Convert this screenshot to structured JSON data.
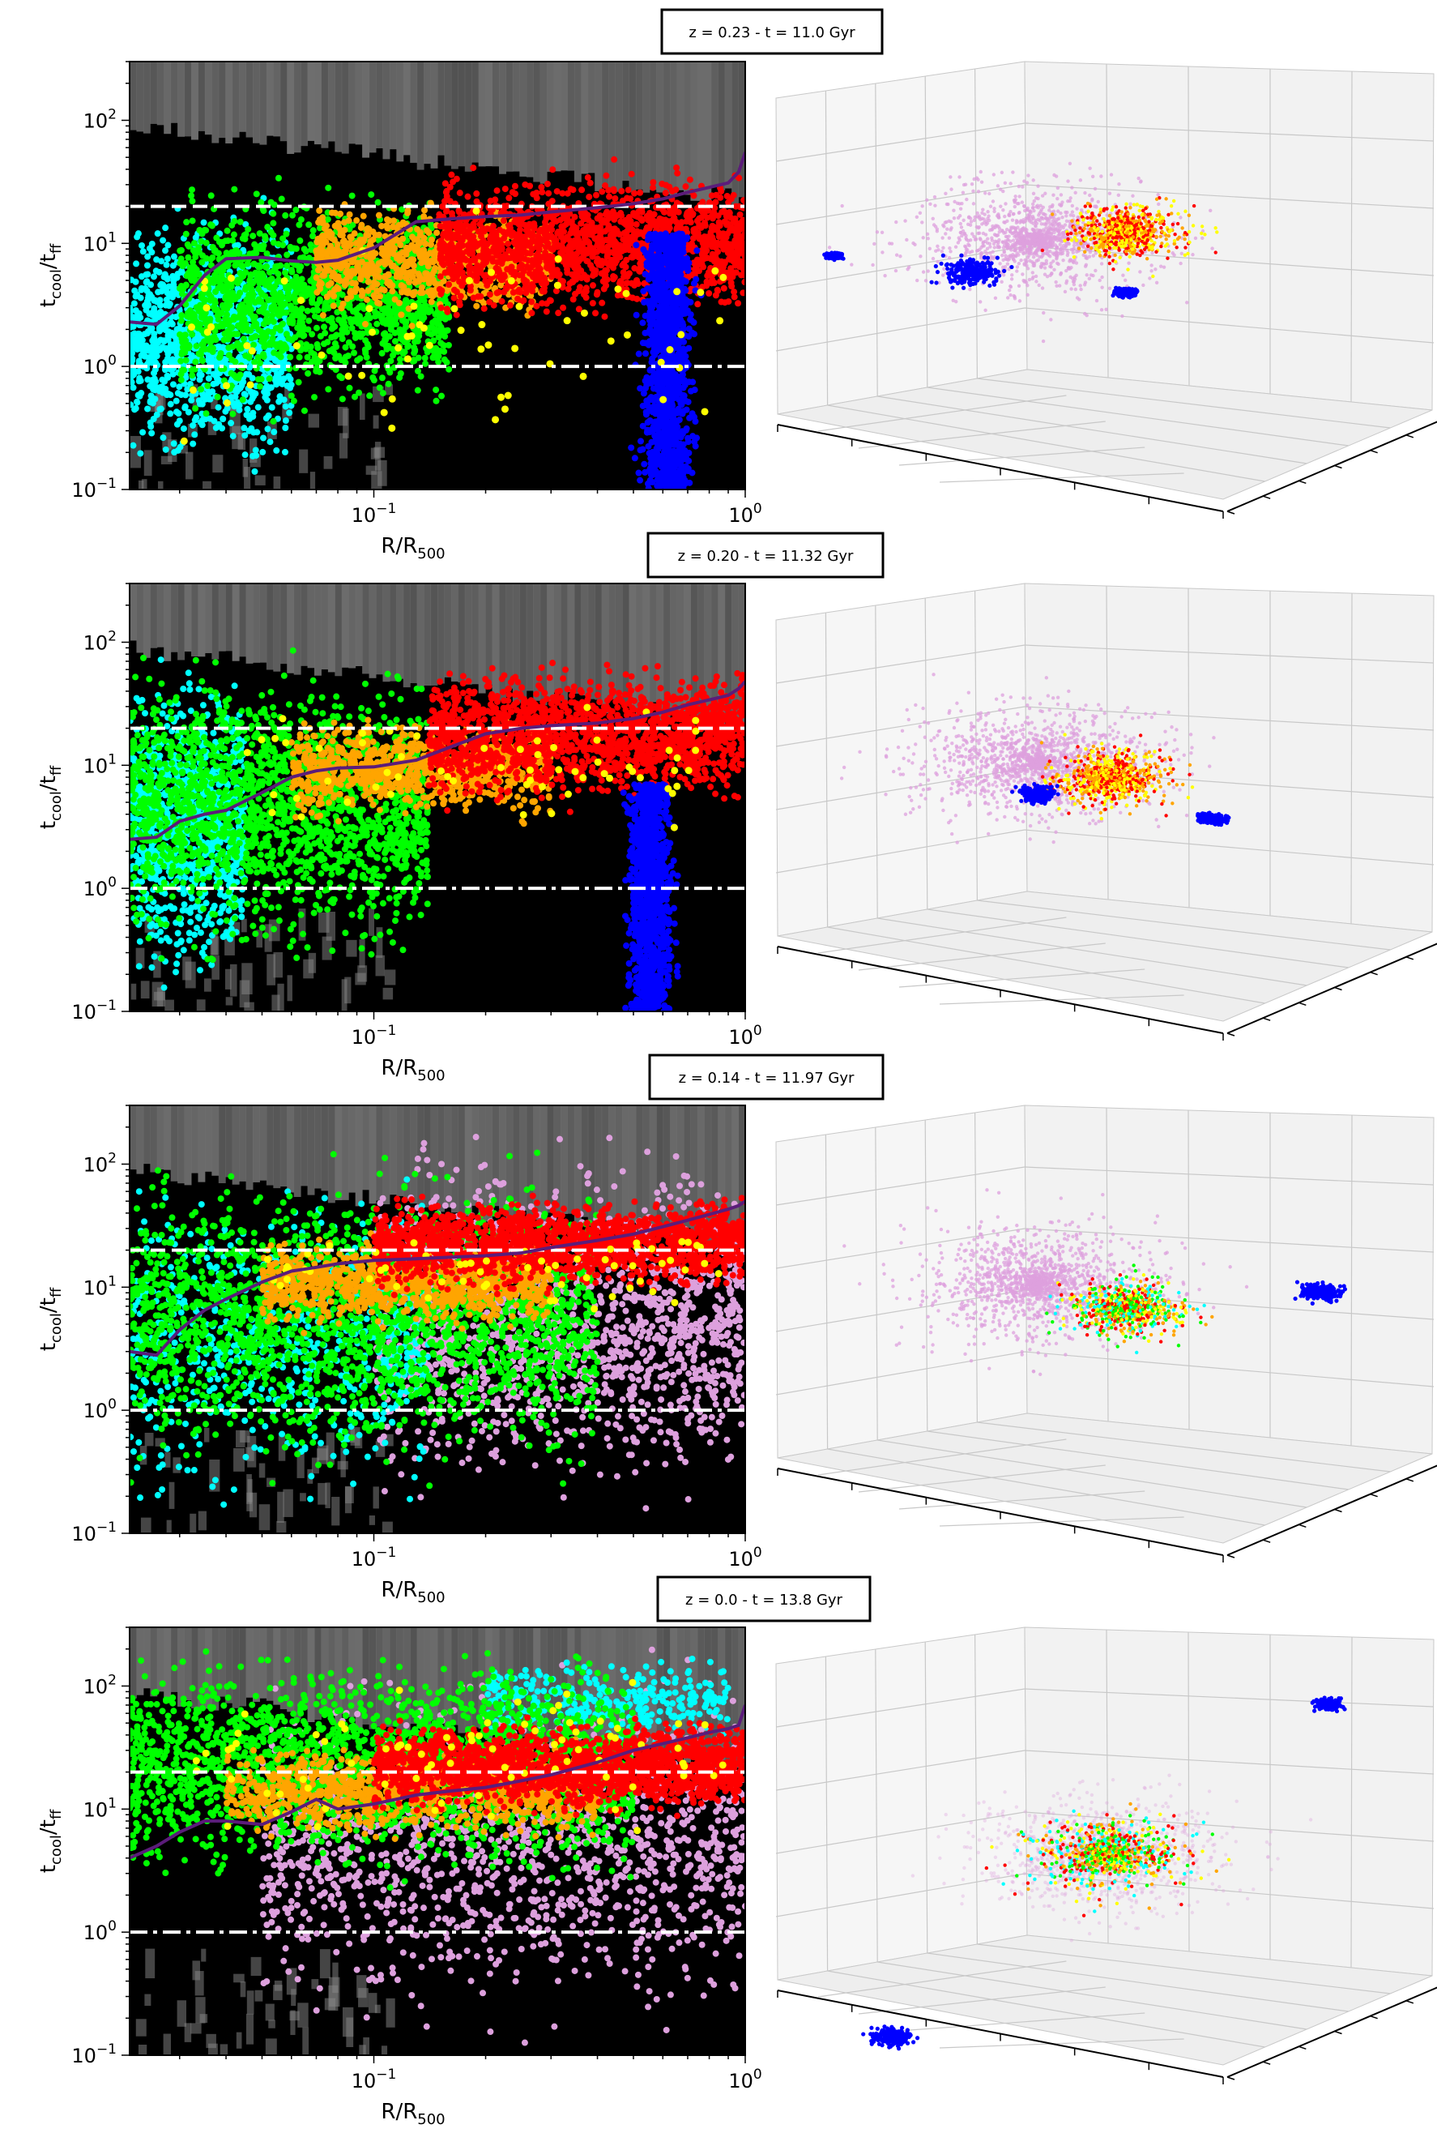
{
  "figure": {
    "panels": [
      {
        "title": "z = 0.23 - t = 11.0 Gyr"
      },
      {
        "title": "z = 0.20 - t = 11.32 Gyr"
      },
      {
        "title": "z = 0.14 - t = 11.97 Gyr"
      },
      {
        "title": "z = 0.0 - t = 13.8 Gyr"
      }
    ],
    "colors": {
      "background_black": "#000000",
      "histogram_grey": "#6e6e6e",
      "cyan": "#00ffff",
      "green": "#00ff00",
      "orange": "#ffa500",
      "red": "#ff0000",
      "blue": "#0000ff",
      "yellow": "#ffff00",
      "pink": "#dda0dd",
      "profile_line": "#5b1c7a",
      "threshold_line": "#ffffff"
    }
  },
  "chart_data": [
    {
      "type": "scatter",
      "title": "z = 0.23 - t = 11.0 Gyr",
      "xlabel": "R/R500",
      "ylabel": "tcool/tff",
      "xscale": "log",
      "yscale": "log",
      "xlim": [
        0.022,
        1.0
      ],
      "ylim": [
        0.1,
        300
      ],
      "x_ticks": [
        {
          "value": 0.1,
          "base": "10",
          "exp": "−1"
        },
        {
          "value": 1.0,
          "base": "10",
          "exp": "0"
        }
      ],
      "y_ticks": [
        {
          "value": 0.1,
          "base": "10",
          "exp": "−1"
        },
        {
          "value": 1,
          "base": "10",
          "exp": "0"
        },
        {
          "value": 10,
          "base": "10",
          "exp": "1"
        },
        {
          "value": 100,
          "base": "10",
          "exp": "2"
        }
      ],
      "hlines": [
        {
          "y": 20,
          "style": "dashed",
          "color": "#ffffff"
        },
        {
          "y": 1,
          "style": "dashdot",
          "color": "#ffffff"
        }
      ],
      "profile": {
        "color": "#5b1c7a",
        "x": [
          0.022,
          0.026,
          0.03,
          0.035,
          0.04,
          0.05,
          0.06,
          0.07,
          0.08,
          0.1,
          0.13,
          0.16,
          0.2,
          0.25,
          0.3,
          0.4,
          0.5,
          0.6,
          0.7,
          0.8,
          0.9,
          0.96,
          1.0
        ],
        "y": [
          2.3,
          2.2,
          3.1,
          5.5,
          7.5,
          7.7,
          7.2,
          7.0,
          7.3,
          9.2,
          15.0,
          15.8,
          16.5,
          17.0,
          18.0,
          19.5,
          21.0,
          23.0,
          26.0,
          28.5,
          31.0,
          38.0,
          55.0
        ]
      },
      "layers": [
        {
          "name": "cyan",
          "color": "#00ffff",
          "x_range": [
            0.022,
            0.06
          ],
          "y_range": [
            0.1,
            30
          ],
          "count": 1100
        },
        {
          "name": "green",
          "color": "#00ff00",
          "x_range": [
            0.03,
            0.16
          ],
          "y_range": [
            0.3,
            40
          ],
          "count": 1500
        },
        {
          "name": "orange",
          "color": "#ffa500",
          "x_range": [
            0.07,
            0.3
          ],
          "y_range": [
            2,
            25
          ],
          "count": 900
        },
        {
          "name": "red",
          "color": "#ff0000",
          "x_range": [
            0.15,
            1.0
          ],
          "y_range": [
            2,
            50
          ],
          "count": 1600
        },
        {
          "name": "blue",
          "color": "#0000ff",
          "x_range": [
            0.38,
            1.0
          ],
          "y_range": [
            0.1,
            12
          ],
          "count": 1300
        },
        {
          "name": "yellow",
          "color": "#ffff00",
          "x_range": [
            0.03,
            0.9
          ],
          "y_range": [
            0.1,
            30
          ],
          "count": 70
        }
      ]
    },
    {
      "type": "scatter",
      "title": "z = 0.20 - t = 11.32 Gyr",
      "xlabel": "R/R500",
      "ylabel": "tcool/tff",
      "xscale": "log",
      "yscale": "log",
      "xlim": [
        0.022,
        1.0
      ],
      "ylim": [
        0.1,
        300
      ],
      "x_ticks": [
        {
          "value": 0.1,
          "base": "10",
          "exp": "−1"
        },
        {
          "value": 1.0,
          "base": "10",
          "exp": "0"
        }
      ],
      "y_ticks": [
        {
          "value": 0.1,
          "base": "10",
          "exp": "−1"
        },
        {
          "value": 1,
          "base": "10",
          "exp": "0"
        },
        {
          "value": 10,
          "base": "10",
          "exp": "1"
        },
        {
          "value": 100,
          "base": "10",
          "exp": "2"
        }
      ],
      "hlines": [
        {
          "y": 20,
          "style": "dashed",
          "color": "#ffffff"
        },
        {
          "y": 1,
          "style": "dashdot",
          "color": "#ffffff"
        }
      ],
      "profile": {
        "color": "#5b1c7a",
        "x": [
          0.022,
          0.026,
          0.03,
          0.035,
          0.04,
          0.05,
          0.06,
          0.07,
          0.08,
          0.1,
          0.13,
          0.16,
          0.2,
          0.25,
          0.3,
          0.4,
          0.5,
          0.6,
          0.7,
          0.8,
          0.9,
          0.96,
          1.0
        ],
        "y": [
          2.5,
          2.6,
          3.5,
          4.0,
          4.3,
          6.0,
          8.0,
          9.0,
          9.5,
          9.7,
          11.0,
          14.0,
          18.0,
          20.0,
          21.0,
          22.0,
          24.0,
          27.0,
          31.0,
          34.0,
          37.0,
          42.0,
          48.0
        ]
      },
      "layers": [
        {
          "name": "cyan",
          "color": "#00ffff",
          "x_range": [
            0.022,
            0.045
          ],
          "y_range": [
            0.1,
            100
          ],
          "count": 900
        },
        {
          "name": "green",
          "color": "#00ff00",
          "x_range": [
            0.022,
            0.14
          ],
          "y_range": [
            0.2,
            100
          ],
          "count": 1800
        },
        {
          "name": "orange",
          "color": "#ffa500",
          "x_range": [
            0.06,
            0.3
          ],
          "y_range": [
            3,
            30
          ],
          "count": 900
        },
        {
          "name": "red",
          "color": "#ff0000",
          "x_range": [
            0.14,
            1.0
          ],
          "y_range": [
            4,
            80
          ],
          "count": 1700
        },
        {
          "name": "blue",
          "color": "#0000ff",
          "x_range": [
            0.36,
            0.85
          ],
          "y_range": [
            0.1,
            7
          ],
          "count": 1100
        },
        {
          "name": "yellow",
          "color": "#ffff00",
          "x_range": [
            0.04,
            0.9
          ],
          "y_range": [
            2,
            40
          ],
          "count": 60
        }
      ]
    },
    {
      "type": "scatter",
      "title": "z = 0.14 - t = 11.97 Gyr",
      "xlabel": "R/R500",
      "ylabel": "tcool/tff",
      "xscale": "log",
      "yscale": "log",
      "xlim": [
        0.022,
        1.0
      ],
      "ylim": [
        0.1,
        300
      ],
      "x_ticks": [
        {
          "value": 0.1,
          "base": "10",
          "exp": "−1"
        },
        {
          "value": 1.0,
          "base": "10",
          "exp": "0"
        }
      ],
      "y_ticks": [
        {
          "value": 0.1,
          "base": "10",
          "exp": "−1"
        },
        {
          "value": 1,
          "base": "10",
          "exp": "0"
        },
        {
          "value": 10,
          "base": "10",
          "exp": "1"
        },
        {
          "value": 100,
          "base": "10",
          "exp": "2"
        }
      ],
      "hlines": [
        {
          "y": 20,
          "style": "dashed",
          "color": "#ffffff"
        },
        {
          "y": 1,
          "style": "dashdot",
          "color": "#ffffff"
        }
      ],
      "profile": {
        "color": "#5b1c7a",
        "x": [
          0.022,
          0.026,
          0.03,
          0.035,
          0.04,
          0.05,
          0.06,
          0.07,
          0.08,
          0.1,
          0.13,
          0.16,
          0.2,
          0.25,
          0.3,
          0.4,
          0.5,
          0.6,
          0.7,
          0.8,
          0.9,
          0.96,
          1.0
        ],
        "y": [
          3.0,
          2.8,
          4.5,
          6.5,
          8.0,
          11.0,
          13.5,
          14.5,
          15.5,
          16.5,
          17.0,
          17.5,
          18.0,
          19.0,
          21.0,
          24.0,
          27.0,
          31.0,
          35.0,
          39.0,
          43.0,
          46.0,
          50.0
        ]
      },
      "layers": [
        {
          "name": "pink",
          "color": "#dda0dd",
          "x_range": [
            0.1,
            1.0
          ],
          "y_range": [
            0.1,
            250
          ],
          "count": 1600
        },
        {
          "name": "cyan",
          "color": "#00ffff",
          "x_range": [
            0.022,
            0.14
          ],
          "y_range": [
            0.1,
            150
          ],
          "count": 700
        },
        {
          "name": "green",
          "color": "#00ff00",
          "x_range": [
            0.022,
            0.4
          ],
          "y_range": [
            0.2,
            150
          ],
          "count": 2000
        },
        {
          "name": "orange",
          "color": "#ffa500",
          "x_range": [
            0.05,
            0.3
          ],
          "y_range": [
            4,
            30
          ],
          "count": 900
        },
        {
          "name": "red",
          "color": "#ff0000",
          "x_range": [
            0.1,
            1.0
          ],
          "y_range": [
            8,
            60
          ],
          "count": 1700
        },
        {
          "name": "yellow",
          "color": "#ffff00",
          "x_range": [
            0.05,
            0.9
          ],
          "y_range": [
            5,
            40
          ],
          "count": 60
        }
      ]
    },
    {
      "type": "scatter",
      "title": "z = 0.0 - t = 13.8 Gyr",
      "xlabel": "R/R500",
      "ylabel": "tcool/tff",
      "xscale": "log",
      "yscale": "log",
      "xlim": [
        0.022,
        1.0
      ],
      "ylim": [
        0.1,
        300
      ],
      "x_ticks": [
        {
          "value": 0.1,
          "base": "10",
          "exp": "−1"
        },
        {
          "value": 1.0,
          "base": "10",
          "exp": "0"
        }
      ],
      "y_ticks": [
        {
          "value": 0.1,
          "base": "10",
          "exp": "−1"
        },
        {
          "value": 1,
          "base": "10",
          "exp": "0"
        },
        {
          "value": 10,
          "base": "10",
          "exp": "1"
        },
        {
          "value": 100,
          "base": "10",
          "exp": "2"
        }
      ],
      "hlines": [
        {
          "y": 20,
          "style": "dashed",
          "color": "#ffffff"
        },
        {
          "y": 1,
          "style": "dashdot",
          "color": "#ffffff"
        }
      ],
      "profile": {
        "color": "#5b1c7a",
        "x": [
          0.022,
          0.026,
          0.03,
          0.035,
          0.04,
          0.05,
          0.06,
          0.07,
          0.08,
          0.1,
          0.13,
          0.16,
          0.2,
          0.25,
          0.3,
          0.4,
          0.5,
          0.6,
          0.7,
          0.8,
          0.9,
          0.96,
          1.0
        ],
        "y": [
          4.0,
          5.0,
          6.5,
          8.0,
          8.0,
          7.5,
          9.5,
          12.0,
          10.0,
          11.0,
          13.0,
          14.0,
          15.0,
          17.0,
          19.0,
          24.0,
          30.0,
          34.0,
          38.0,
          42.0,
          45.0,
          48.0,
          70.0
        ]
      },
      "layers": [
        {
          "name": "pink",
          "color": "#dda0dd",
          "x_range": [
            0.05,
            1.0
          ],
          "y_range": [
            0.1,
            250
          ],
          "count": 1400
        },
        {
          "name": "cyan",
          "color": "#00ffff",
          "x_range": [
            0.2,
            0.9
          ],
          "y_range": [
            30,
            200
          ],
          "count": 300
        },
        {
          "name": "green",
          "color": "#00ff00",
          "x_range": [
            0.022,
            0.5
          ],
          "y_range": [
            2,
            250
          ],
          "count": 2200
        },
        {
          "name": "orange",
          "color": "#ffa500",
          "x_range": [
            0.04,
            0.4
          ],
          "y_range": [
            5,
            40
          ],
          "count": 900
        },
        {
          "name": "red",
          "color": "#ff0000",
          "x_range": [
            0.1,
            1.0
          ],
          "y_range": [
            8,
            60
          ],
          "count": 1800
        },
        {
          "name": "yellow",
          "color": "#ffff00",
          "x_range": [
            0.03,
            0.9
          ],
          "y_range": [
            5,
            150
          ],
          "count": 80
        }
      ]
    }
  ]
}
